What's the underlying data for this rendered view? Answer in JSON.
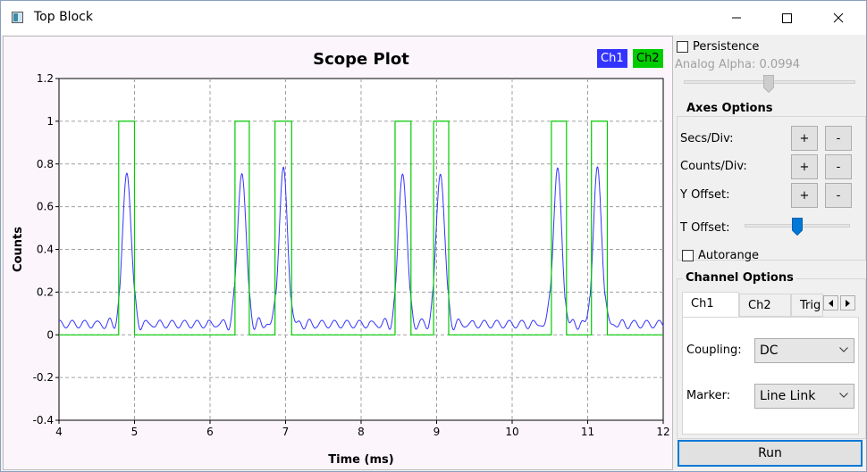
{
  "window": {
    "title": "Top Block"
  },
  "chart_data": {
    "type": "line",
    "title": "Scope Plot",
    "xlabel": "Time (ms)",
    "ylabel": "Counts",
    "xlim": [
      4,
      12
    ],
    "ylim": [
      -0.4,
      1.2
    ],
    "x_ticks": [
      4,
      5,
      6,
      7,
      8,
      9,
      10,
      11,
      12
    ],
    "y_ticks": [
      -0.4,
      -0.2,
      0,
      0.2,
      0.4,
      0.6,
      0.8,
      1,
      1.2
    ],
    "grid": true,
    "legend_position": "top-right",
    "series": [
      {
        "name": "Ch1",
        "color": "#3333ff",
        "peak_times": [
          4.9,
          6.42,
          6.97,
          8.55,
          9.05,
          10.6,
          11.13
        ],
        "peak_value": 0.77,
        "baseline": 0.05
      },
      {
        "name": "Ch2",
        "color": "#00cc00",
        "pulses": [
          [
            4.79,
            5.0
          ],
          [
            6.33,
            6.52
          ],
          [
            6.86,
            7.08
          ],
          [
            8.45,
            8.66
          ],
          [
            8.96,
            9.16
          ],
          [
            10.52,
            10.72
          ],
          [
            11.05,
            11.26
          ]
        ],
        "high": 1,
        "low": 0
      }
    ]
  },
  "panel": {
    "persistence_label": "Persistence",
    "analog_alpha_label": "Analog Alpha: 0.0994",
    "analog_alpha_value": 0.55,
    "axes_options_title": "Axes Options",
    "secs_div_label": "Secs/Div:",
    "counts_div_label": "Counts/Div:",
    "y_offset_label": "Y Offset:",
    "t_offset_label": "T Offset:",
    "t_offset_value": 0.5,
    "plus": "+",
    "minus": "-",
    "autorange_label": "Autorange",
    "channel_options_title": "Channel Options",
    "tabs": [
      "Ch1",
      "Ch2",
      "Trig"
    ],
    "coupling_label": "Coupling:",
    "coupling_value": "DC",
    "marker_label": "Marker:",
    "marker_value": "Line Link",
    "run_label": "Run"
  }
}
